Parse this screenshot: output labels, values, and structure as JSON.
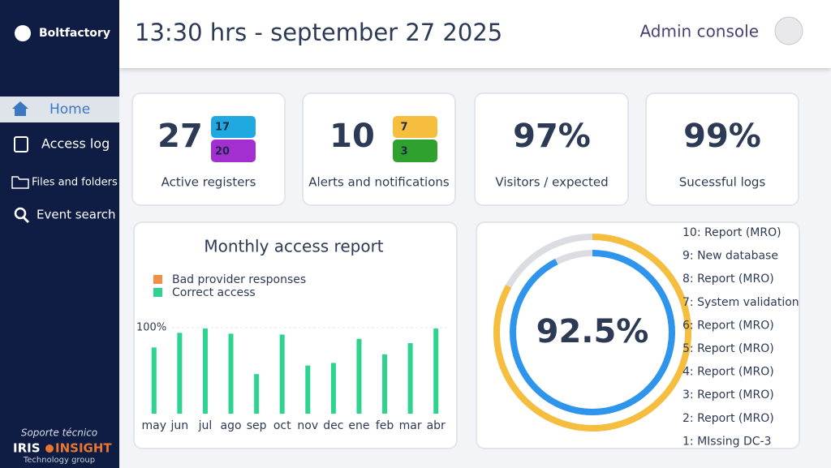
{
  "sidebar": {
    "brand": "Boltfactory",
    "menu": [
      "Home",
      "Access log",
      "Files and folders",
      "Event search"
    ],
    "support": "Soporte técnico",
    "partner": [
      "IRIS",
      "INSIGHT"
    ],
    "partner_tagline": "Technology group"
  },
  "header": {
    "title": "13:30 hrs - september 27 2025",
    "role": "Admin console"
  },
  "cards": [
    {
      "value": "27",
      "label": "Active registers",
      "badges": [
        "17",
        "20"
      ]
    },
    {
      "value": "10",
      "label": "Alerts and notifications",
      "badges": [
        "7",
        "3"
      ]
    },
    {
      "value": "97%",
      "label": "Visitors / expected"
    },
    {
      "value": "99%",
      "label": "Sucessful logs"
    }
  ],
  "chart_data": {
    "type": "bar",
    "title": "Monthly access report",
    "categories": [
      "may",
      "jun",
      "jul",
      "ago",
      "sep",
      "oct",
      "nov",
      "dec",
      "ene",
      "feb",
      "mar",
      "abr"
    ],
    "series": [
      {
        "name": "Bad provider responses",
        "color": "#f28e45",
        "values": [
          0,
          0,
          0,
          0,
          0,
          0,
          0,
          0,
          0,
          0,
          0,
          0
        ]
      },
      {
        "name": "Correct access",
        "color": "#2dd38f",
        "values": [
          77,
          94,
          99,
          93,
          46,
          92,
          56,
          59,
          87,
          69,
          82,
          99
        ]
      }
    ],
    "ylim": [
      0,
      100
    ],
    "yticks": [
      {
        "value": 100,
        "label": "100%"
      }
    ],
    "grid": true
  },
  "gauge": {
    "value": 92.5,
    "value_label": "92.5%",
    "outer_value": 83,
    "inner_color": "#2f95ec",
    "outer_color": "#f6be3f",
    "track_color": "#dcdde3"
  },
  "events": [
    "10: Report (MRO)",
    "9: New database",
    "8: Report (MRO)",
    "7: System validation",
    "6: Report (MRO)",
    "5: Report (MRO)",
    "4: Report (MRO)",
    "3: Report (MRO)",
    "2: Report (MRO)",
    "1: MIssing DC-3"
  ]
}
